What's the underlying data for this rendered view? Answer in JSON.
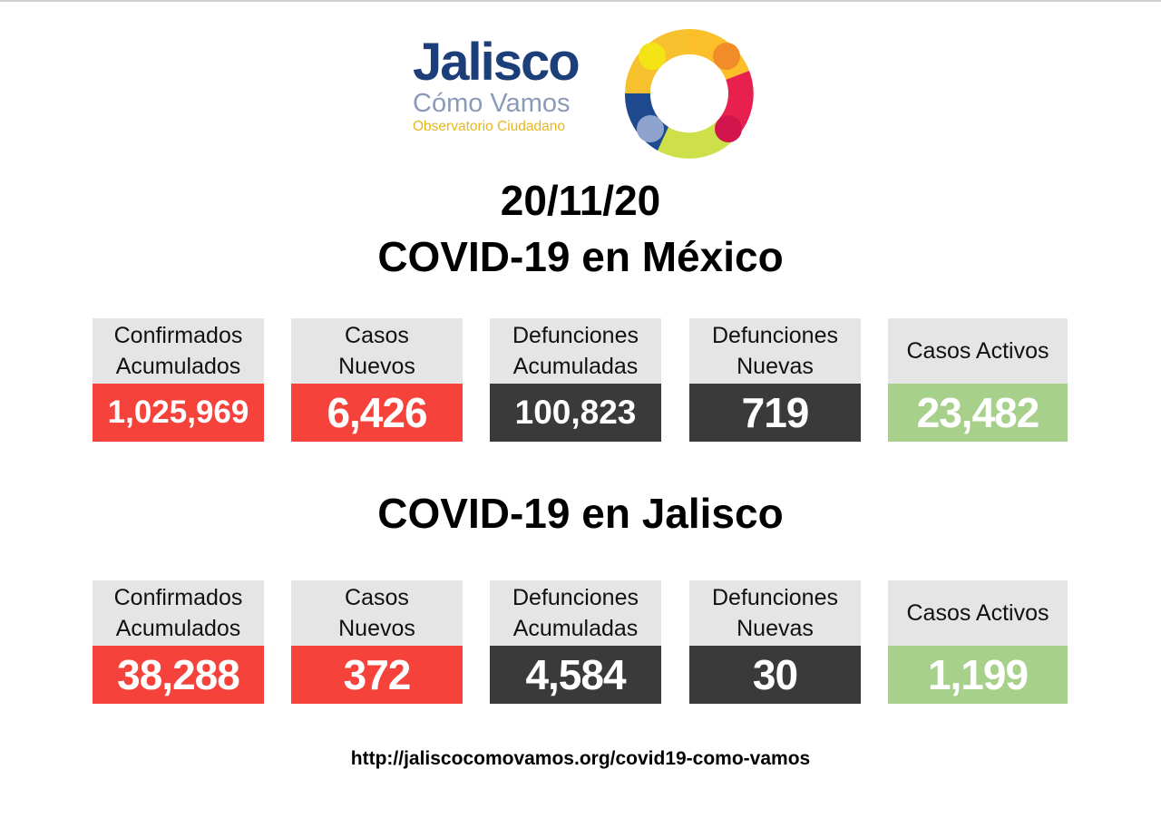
{
  "logo": {
    "title": "Jalisco",
    "subtitle": "Cómo Vamos",
    "tagline": "Observatorio Ciudadano",
    "ring_colors": [
      "#fbbf2a",
      "#f28c28",
      "#e8204e",
      "#cde04a",
      "#8fa3cf",
      "#1f4a8f",
      "#f4e416",
      "#d3154d"
    ]
  },
  "date": "20/11/20",
  "mexico": {
    "title": "COVID-19 en México",
    "cards": [
      {
        "label": "Confirmados\nAcumulados",
        "value": "1,025,969",
        "color": "#f5423b"
      },
      {
        "label": "Casos\nNuevos",
        "value": "6,426",
        "color": "#f5423b"
      },
      {
        "label": "Defunciones\nAcumuladas",
        "value": "100,823",
        "color": "#3a3a3a"
      },
      {
        "label": "Defunciones\nNuevas",
        "value": "719",
        "color": "#3a3a3a"
      },
      {
        "label": "Casos Activos",
        "value": "23,482",
        "color": "#a7d08b"
      }
    ]
  },
  "jalisco": {
    "title": "COVID-19 en Jalisco",
    "cards": [
      {
        "label": "Confirmados\nAcumulados",
        "value": "38,288",
        "color": "#f5423b"
      },
      {
        "label": "Casos\nNuevos",
        "value": "372",
        "color": "#f5423b"
      },
      {
        "label": "Defunciones\nAcumuladas",
        "value": "4,584",
        "color": "#3a3a3a"
      },
      {
        "label": "Defunciones\nNuevas",
        "value": "30",
        "color": "#3a3a3a"
      },
      {
        "label": "Casos Activos",
        "value": "1,199",
        "color": "#a7d08b"
      }
    ]
  },
  "footer": {
    "url": "http://jaliscocomovamos.org/covid19-como-vamos"
  }
}
